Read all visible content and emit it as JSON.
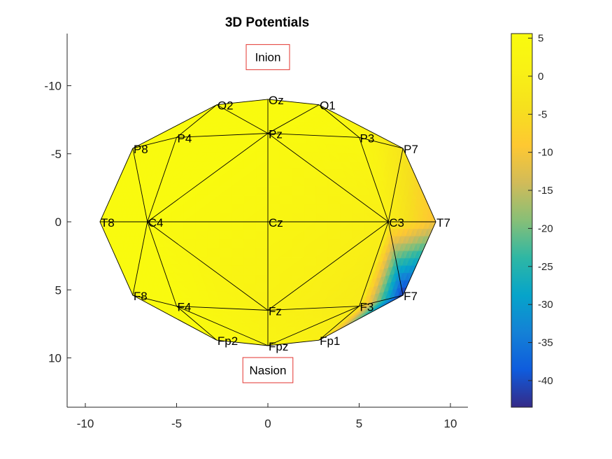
{
  "chart_data": {
    "type": "heatmap",
    "title": "3D Potentials",
    "xlabel": "",
    "ylabel": "",
    "xlim": [
      -11,
      11
    ],
    "ylim": [
      -13.8,
      13.8
    ],
    "y_reversed": true,
    "xticks": [
      -10,
      -5,
      0,
      5,
      10
    ],
    "yticks": [
      -10,
      -5,
      0,
      5,
      10
    ],
    "colorbar": {
      "colormap": "parula",
      "range": [
        -43.5,
        5.6
      ],
      "ticks": [
        5,
        0,
        -5,
        -10,
        -15,
        -20,
        -25,
        -30,
        -35,
        -40
      ]
    },
    "annotations": [
      {
        "text": "Inion",
        "x": 0,
        "y": -12.1
      },
      {
        "text": "Nasion",
        "x": 0,
        "y": 10.9
      }
    ],
    "electrodes": [
      {
        "label": "Oz",
        "x": 0.0,
        "y": -9.0,
        "value": 5
      },
      {
        "label": "O1",
        "x": 2.8,
        "y": -8.6,
        "value": 5
      },
      {
        "label": "O2",
        "x": -2.8,
        "y": -8.6,
        "value": 5
      },
      {
        "label": "Pz",
        "x": 0.0,
        "y": -6.5,
        "value": 5
      },
      {
        "label": "P3",
        "x": 5.0,
        "y": -6.2,
        "value": 4
      },
      {
        "label": "P4",
        "x": -5.0,
        "y": -6.2,
        "value": 5
      },
      {
        "label": "P7",
        "x": 7.4,
        "y": -5.4,
        "value": -3
      },
      {
        "label": "P8",
        "x": -7.4,
        "y": -5.4,
        "value": 5
      },
      {
        "label": "Cz",
        "x": 0.0,
        "y": 0.0,
        "value": 3
      },
      {
        "label": "C3",
        "x": 6.6,
        "y": 0.0,
        "value": 0
      },
      {
        "label": "C4",
        "x": -6.6,
        "y": 0.0,
        "value": 5
      },
      {
        "label": "T7",
        "x": 9.2,
        "y": 0.0,
        "value": -10
      },
      {
        "label": "T8",
        "x": -9.2,
        "y": 0.0,
        "value": 5
      },
      {
        "label": "Fz",
        "x": 0.0,
        "y": 6.5,
        "value": 1
      },
      {
        "label": "F3",
        "x": 5.0,
        "y": 6.2,
        "value": -1
      },
      {
        "label": "F4",
        "x": -5.0,
        "y": 6.2,
        "value": 5
      },
      {
        "label": "F7",
        "x": 7.4,
        "y": 5.4,
        "value": -43
      },
      {
        "label": "F8",
        "x": -7.4,
        "y": 5.4,
        "value": 5
      },
      {
        "label": "Fpz",
        "x": 0.0,
        "y": 9.1,
        "value": 2
      },
      {
        "label": "Fp1",
        "x": 2.8,
        "y": 8.7,
        "value": 0
      },
      {
        "label": "Fp2",
        "x": -2.8,
        "y": 8.7,
        "value": 5
      }
    ],
    "mesh": [
      [
        "O2",
        "Oz",
        "Pz"
      ],
      [
        "Oz",
        "O1",
        "Pz"
      ],
      [
        "O2",
        "Pz",
        "P4"
      ],
      [
        "O1",
        "P3",
        "Pz"
      ],
      [
        "O2",
        "P4",
        "P8"
      ],
      [
        "O1",
        "P7",
        "P3"
      ],
      [
        "P8",
        "P4",
        "C4"
      ],
      [
        "P8",
        "C4",
        "T8"
      ],
      [
        "P4",
        "Pz",
        "C4"
      ],
      [
        "Pz",
        "Cz",
        "C4"
      ],
      [
        "Pz",
        "C3",
        "Cz"
      ],
      [
        "Pz",
        "P3",
        "C3"
      ],
      [
        "P3",
        "P7",
        "C3"
      ],
      [
        "P7",
        "T7",
        "C3"
      ],
      [
        "T8",
        "C4",
        "F8"
      ],
      [
        "C4",
        "F4",
        "F8"
      ],
      [
        "C4",
        "Cz",
        "Fz"
      ],
      [
        "C4",
        "Fz",
        "F4"
      ],
      [
        "Cz",
        "C3",
        "Fz"
      ],
      [
        "C3",
        "F3",
        "Fz"
      ],
      [
        "C3",
        "F7",
        "F3"
      ],
      [
        "C3",
        "T7",
        "F7"
      ],
      [
        "F8",
        "F4",
        "Fp2"
      ],
      [
        "F4",
        "Fz",
        "Fpz"
      ],
      [
        "F4",
        "Fpz",
        "Fp2"
      ],
      [
        "Fz",
        "F3",
        "Fpz"
      ],
      [
        "F3",
        "Fp1",
        "Fpz"
      ],
      [
        "F3",
        "F7",
        "Fp1"
      ]
    ]
  }
}
